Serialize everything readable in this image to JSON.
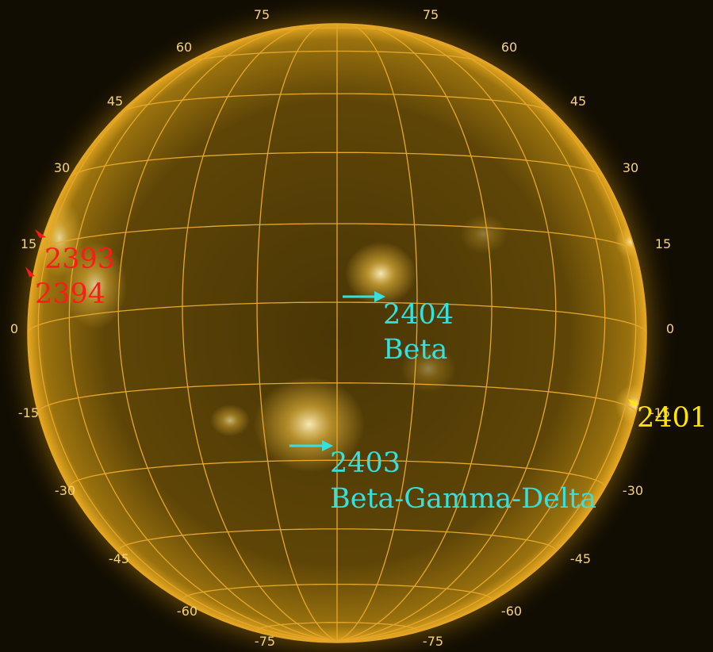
{
  "colors": {
    "background": "#120d02",
    "disk_center": "#5a4207",
    "disk_limb": "#b88812",
    "grid": "#e6a72a",
    "red_label": "#ff1a1a",
    "cyan_label": "#35e0df",
    "yellow_label": "#ffe600"
  },
  "grid": {
    "latitude_lines_deg": [
      75,
      60,
      45,
      30,
      15,
      0,
      -15,
      -30,
      -45,
      -60,
      -75
    ],
    "longitude_lines_deg": [
      -75,
      -60,
      -45,
      -30,
      -15,
      0,
      15,
      30,
      45,
      60,
      75
    ],
    "labels_left": [
      "75",
      "60",
      "45",
      "30",
      "15",
      "0",
      "-15",
      "-30",
      "-45",
      "-60",
      "-75"
    ],
    "labels_right": [
      "75",
      "60",
      "45",
      "30",
      "15",
      "0",
      "-15",
      "-30",
      "-45",
      "-60",
      "-75"
    ]
  },
  "regions": {
    "r2393": {
      "number": "2393",
      "color_name": "red"
    },
    "r2394": {
      "number": "2394",
      "color_name": "red"
    },
    "r2404": {
      "number": "2404",
      "class": "Beta",
      "color_name": "cyan"
    },
    "r2403": {
      "number": "2403",
      "class": "Beta-Gamma-Delta",
      "color_name": "cyan"
    },
    "r2401": {
      "number": "2401",
      "color_name": "yellow"
    }
  }
}
